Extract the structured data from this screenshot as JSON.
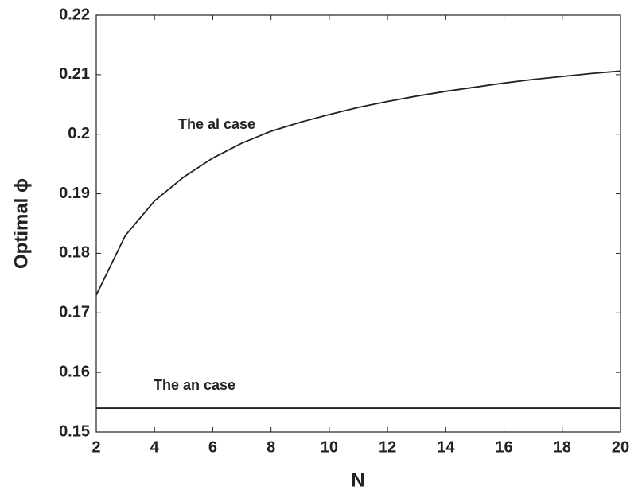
{
  "chart_data": {
    "type": "line",
    "x_label": "N",
    "y_label": "Optimal ϕ",
    "x": [
      2,
      3,
      4,
      5,
      6,
      7,
      8,
      9,
      10,
      11,
      12,
      13,
      14,
      15,
      16,
      17,
      18,
      19,
      20
    ],
    "series": [
      {
        "name": "The al case",
        "color": "#222222",
        "values": [
          0.173,
          0.183,
          0.1888,
          0.1928,
          0.196,
          0.1985,
          0.2005,
          0.202,
          0.2033,
          0.2045,
          0.2055,
          0.2064,
          0.2072,
          0.2079,
          0.2086,
          0.2092,
          0.2097,
          0.2102,
          0.2106
        ]
      },
      {
        "name": "The an case",
        "color": "#222222",
        "values": [
          0.154,
          0.154,
          0.154,
          0.154,
          0.154,
          0.154,
          0.154,
          0.154,
          0.154,
          0.154,
          0.154,
          0.154,
          0.154,
          0.154,
          0.154,
          0.154,
          0.154,
          0.154,
          0.154
        ]
      }
    ],
    "xlim": [
      2,
      20
    ],
    "xticks": [
      2,
      4,
      6,
      8,
      10,
      12,
      14,
      16,
      18,
      20
    ],
    "ylim": [
      0.15,
      0.22
    ],
    "yticks": [
      0.15,
      0.16,
      0.17,
      0.18,
      0.19,
      0.2,
      0.21,
      0.22
    ],
    "grid": false
  }
}
